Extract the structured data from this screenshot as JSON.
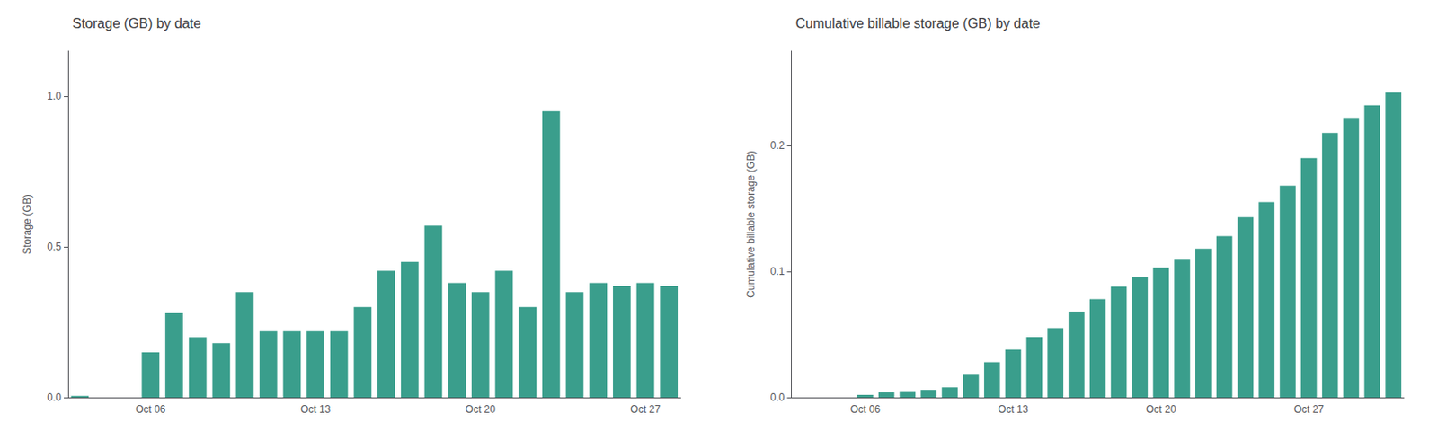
{
  "chart_data": [
    {
      "type": "bar",
      "title": "Storage (GB) by date",
      "y_label": "Storage (GB)",
      "categories": [
        null,
        null,
        null,
        "Oct 06",
        null,
        null,
        null,
        null,
        null,
        null,
        "Oct 13",
        null,
        null,
        null,
        null,
        null,
        null,
        "Oct 20",
        null,
        null,
        null,
        null,
        null,
        null,
        "Oct 27",
        null
      ],
      "values": [
        0.005,
        0.0,
        0.0,
        0.15,
        0.28,
        0.2,
        0.18,
        0.35,
        0.22,
        0.22,
        0.22,
        0.22,
        0.3,
        0.42,
        0.45,
        0.57,
        0.38,
        0.35,
        0.42,
        0.3,
        0.95,
        0.35,
        0.38,
        0.37,
        0.38,
        0.37
      ],
      "color": "#3a9e8c",
      "ylim": [
        0,
        1.15
      ],
      "yticks": [
        {
          "value": 0,
          "label": "0.0"
        },
        0.5,
        {
          "value": 1,
          "label": "1.0"
        }
      ],
      "grid": false
    },
    {
      "type": "bar",
      "title": "Cumulative billable storage (GB) by date",
      "y_label": "Cumulative billable storage (GB)",
      "categories": [
        null,
        null,
        null,
        "Oct 06",
        null,
        null,
        null,
        null,
        null,
        null,
        "Oct 13",
        null,
        null,
        null,
        null,
        null,
        null,
        "Oct 20",
        null,
        null,
        null,
        null,
        null,
        null,
        "Oct 27",
        null,
        null,
        null,
        null
      ],
      "values": [
        0.0,
        0.0,
        0.0,
        0.002,
        0.004,
        0.005,
        0.006,
        0.008,
        0.018,
        0.028,
        0.038,
        0.048,
        0.055,
        0.068,
        0.078,
        0.088,
        0.096,
        0.103,
        0.11,
        0.118,
        0.128,
        0.143,
        0.155,
        0.168,
        0.19,
        0.21,
        0.222,
        0.232,
        0.242
      ],
      "color": "#3a9e8c",
      "ylim": [
        0,
        0.275
      ],
      "yticks": [
        {
          "value": 0,
          "label": "0.0"
        },
        0.1,
        0.2
      ],
      "grid": false
    }
  ]
}
